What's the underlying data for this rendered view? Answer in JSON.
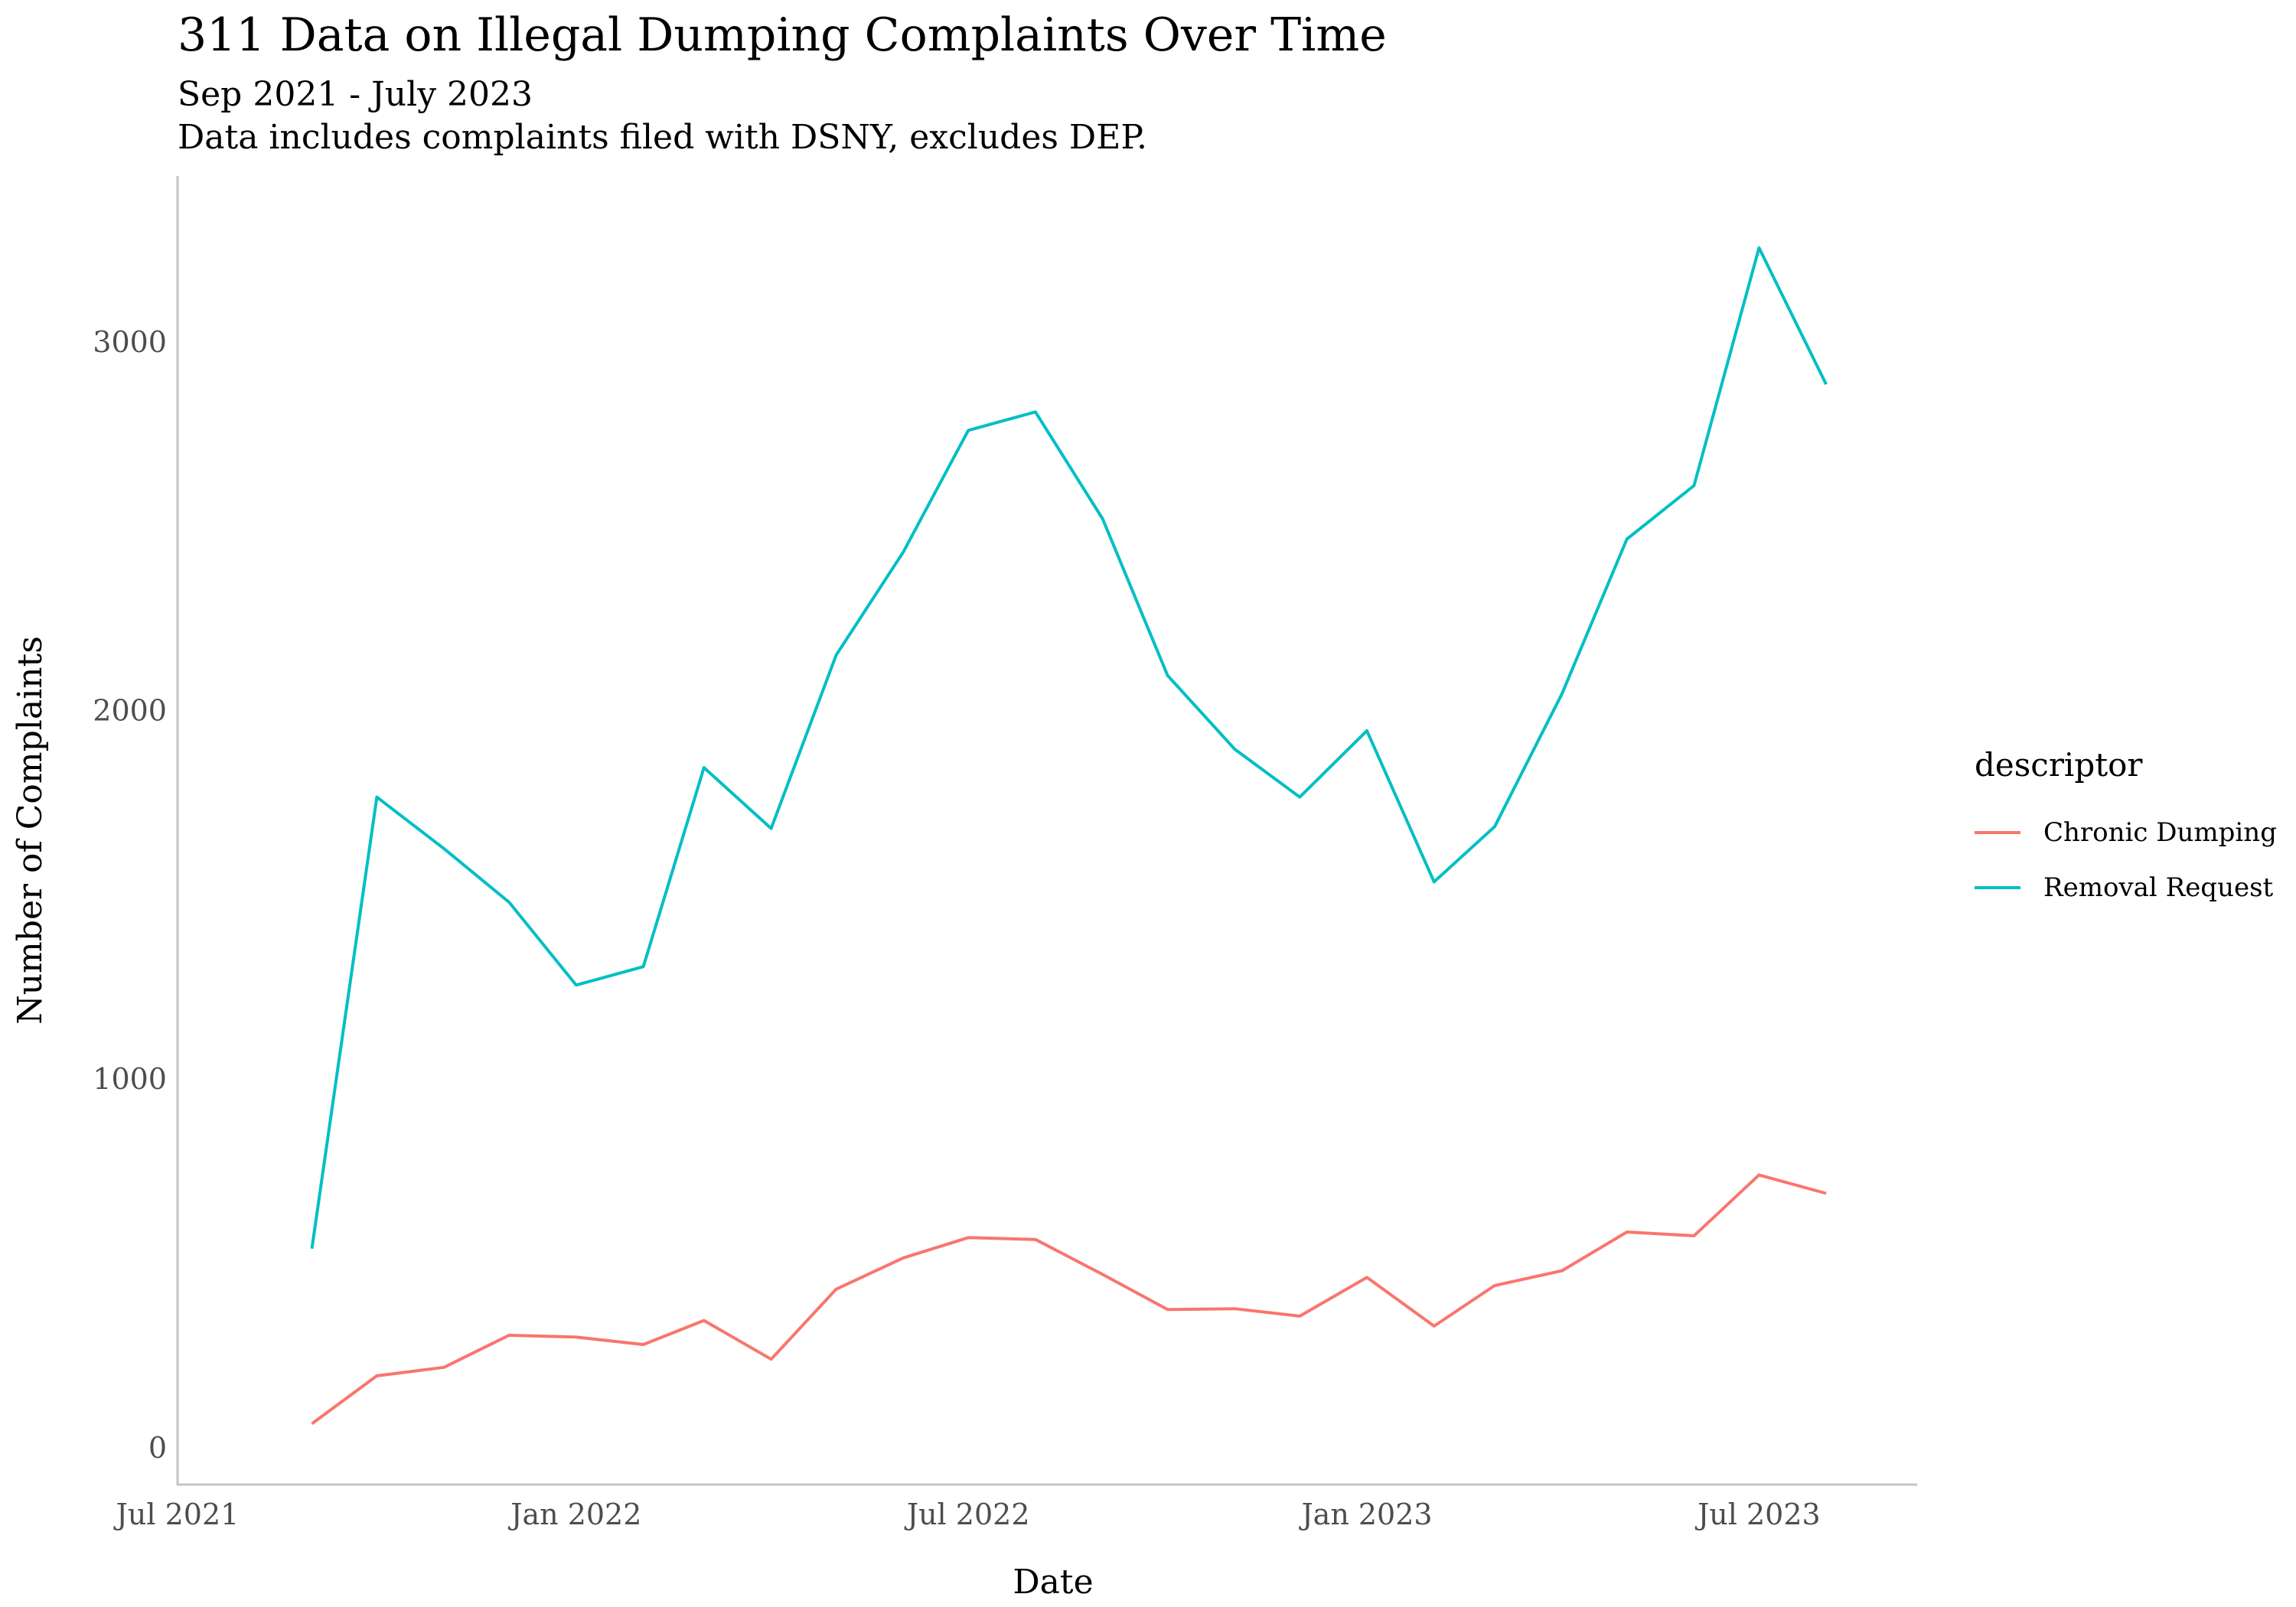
{
  "chart_data": {
    "type": "line",
    "title": "311 Data on Illegal Dumping Complaints Over Time",
    "subtitle": [
      "Sep 2021 - July 2023",
      "Data includes complaints filed with DSNY, excludes DEP."
    ],
    "xlabel": "Date",
    "ylabel": "Number of Complaints",
    "x_ticks": [
      "Jul 2021",
      "Jan 2022",
      "Jul 2022",
      "Jan 2023",
      "Jul 2023"
    ],
    "y_ticks": [
      0,
      1000,
      2000,
      3000
    ],
    "ylim": [
      -100,
      3450
    ],
    "xlim": [
      "2021-07-01",
      "2023-09-12"
    ],
    "grid": false,
    "legend": {
      "title": "descriptor",
      "position": "right"
    },
    "x": [
      "2021-09-01",
      "2021-10-01",
      "2021-11-01",
      "2021-12-01",
      "2022-01-01",
      "2022-02-01",
      "2022-03-01",
      "2022-04-01",
      "2022-05-01",
      "2022-06-01",
      "2022-07-01",
      "2022-08-01",
      "2022-09-01",
      "2022-10-01",
      "2022-11-01",
      "2022-12-01",
      "2023-01-01",
      "2023-02-01",
      "2023-03-01",
      "2023-04-01",
      "2023-05-01",
      "2023-06-01",
      "2023-07-01",
      "2023-08-01"
    ],
    "series": [
      {
        "name": "Chronic Dumping",
        "color": "#F8766D",
        "values": [
          65,
          195,
          218,
          305,
          300,
          280,
          345,
          240,
          430,
          515,
          570,
          565,
          470,
          375,
          377,
          357,
          462,
          330,
          440,
          480,
          585,
          575,
          740,
          690
        ]
      },
      {
        "name": "Removal Request",
        "color": "#00BFC4",
        "values": [
          540,
          1765,
          1625,
          1480,
          1255,
          1305,
          1845,
          1680,
          2150,
          2430,
          2760,
          2810,
          2520,
          2095,
          1895,
          1765,
          1945,
          1535,
          1685,
          2045,
          2465,
          2610,
          3255,
          2885
        ]
      }
    ]
  }
}
